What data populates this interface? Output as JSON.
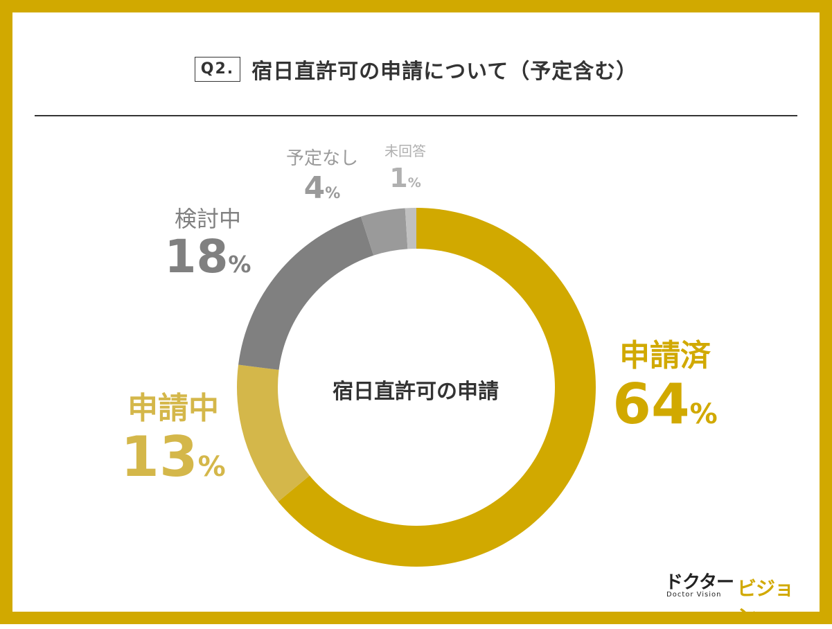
{
  "header": {
    "question_tag": "Q2.",
    "title": "宿日直許可の申請について（予定含む）"
  },
  "chart_data": {
    "type": "pie",
    "variant": "donut",
    "title": "宿日直許可の申請について（予定含む）",
    "center_label": "宿日直許可の申請",
    "unit": "%",
    "slices": [
      {
        "name": "申請済",
        "value": 64,
        "value_text": "64",
        "color": "#d1a900"
      },
      {
        "name": "申請中",
        "value": 13,
        "value_text": "13",
        "color": "#d4b74a"
      },
      {
        "name": "検討中",
        "value": 18,
        "value_text": "18",
        "color": "#808080"
      },
      {
        "name": "予定なし",
        "value": 4,
        "value_text": "4",
        "color": "#9a9a9a"
      },
      {
        "name": "未回答",
        "value": 1,
        "value_text": "1",
        "color": "#c0c0c0"
      }
    ]
  },
  "logo": {
    "jp_main": "ドクター",
    "jp_accent": "ビジョン",
    "en": "Doctor Vision"
  },
  "colors": {
    "frame": "#d1a900",
    "text": "#333333"
  }
}
